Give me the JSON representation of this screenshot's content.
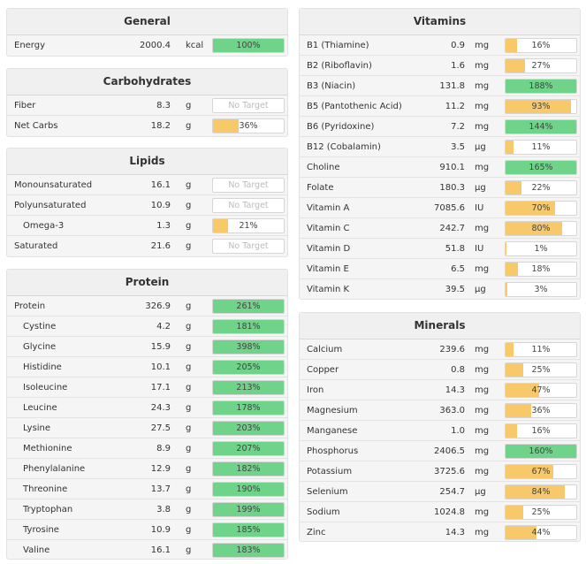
{
  "general": {
    "title": "General",
    "rows": [
      {
        "name": "Energy",
        "amount": "2000.4",
        "unit": "kcal",
        "pct": "100%",
        "fill": 1.0,
        "color": "green"
      }
    ]
  },
  "carbohydrates": {
    "title": "Carbohydrates",
    "rows": [
      {
        "name": "Fiber",
        "amount": "8.3",
        "unit": "g",
        "pct": "No Target",
        "fill": 0,
        "color": "none"
      },
      {
        "name": "Net Carbs",
        "amount": "18.2",
        "unit": "g",
        "pct": "36%",
        "fill": 0.36,
        "color": "yellow"
      }
    ]
  },
  "lipids": {
    "title": "Lipids",
    "rows": [
      {
        "name": "Monounsaturated",
        "amount": "16.1",
        "unit": "g",
        "pct": "No Target",
        "fill": 0,
        "color": "none"
      },
      {
        "name": "Polyunsaturated",
        "amount": "10.9",
        "unit": "g",
        "pct": "No Target",
        "fill": 0,
        "color": "none"
      },
      {
        "name": "Omega-3",
        "amount": "1.3",
        "unit": "g",
        "pct": "21%",
        "fill": 0.21,
        "color": "yellow",
        "indent": true
      },
      {
        "name": "Saturated",
        "amount": "21.6",
        "unit": "g",
        "pct": "No Target",
        "fill": 0,
        "color": "none"
      }
    ]
  },
  "protein": {
    "title": "Protein",
    "rows": [
      {
        "name": "Protein",
        "amount": "326.9",
        "unit": "g",
        "pct": "261%",
        "fill": 1.0,
        "color": "green"
      },
      {
        "name": "Cystine",
        "amount": "4.2",
        "unit": "g",
        "pct": "181%",
        "fill": 1.0,
        "color": "green",
        "indent": true
      },
      {
        "name": "Glycine",
        "amount": "15.9",
        "unit": "g",
        "pct": "398%",
        "fill": 1.0,
        "color": "green",
        "indent": true
      },
      {
        "name": "Histidine",
        "amount": "10.1",
        "unit": "g",
        "pct": "205%",
        "fill": 1.0,
        "color": "green",
        "indent": true
      },
      {
        "name": "Isoleucine",
        "amount": "17.1",
        "unit": "g",
        "pct": "213%",
        "fill": 1.0,
        "color": "green",
        "indent": true
      },
      {
        "name": "Leucine",
        "amount": "24.3",
        "unit": "g",
        "pct": "178%",
        "fill": 1.0,
        "color": "green",
        "indent": true
      },
      {
        "name": "Lysine",
        "amount": "27.5",
        "unit": "g",
        "pct": "203%",
        "fill": 1.0,
        "color": "green",
        "indent": true
      },
      {
        "name": "Methionine",
        "amount": "8.9",
        "unit": "g",
        "pct": "207%",
        "fill": 1.0,
        "color": "green",
        "indent": true
      },
      {
        "name": "Phenylalanine",
        "amount": "12.9",
        "unit": "g",
        "pct": "182%",
        "fill": 1.0,
        "color": "green",
        "indent": true
      },
      {
        "name": "Threonine",
        "amount": "13.7",
        "unit": "g",
        "pct": "190%",
        "fill": 1.0,
        "color": "green",
        "indent": true
      },
      {
        "name": "Tryptophan",
        "amount": "3.8",
        "unit": "g",
        "pct": "199%",
        "fill": 1.0,
        "color": "green",
        "indent": true
      },
      {
        "name": "Tyrosine",
        "amount": "10.9",
        "unit": "g",
        "pct": "185%",
        "fill": 1.0,
        "color": "green",
        "indent": true
      },
      {
        "name": "Valine",
        "amount": "16.1",
        "unit": "g",
        "pct": "183%",
        "fill": 1.0,
        "color": "green",
        "indent": true
      }
    ]
  },
  "vitamins": {
    "title": "Vitamins",
    "rows": [
      {
        "name": "B1 (Thiamine)",
        "amount": "0.9",
        "unit": "mg",
        "pct": "16%",
        "fill": 0.16,
        "color": "yellow"
      },
      {
        "name": "B2 (Riboflavin)",
        "amount": "1.6",
        "unit": "mg",
        "pct": "27%",
        "fill": 0.27,
        "color": "yellow"
      },
      {
        "name": "B3 (Niacin)",
        "amount": "131.8",
        "unit": "mg",
        "pct": "188%",
        "fill": 1.0,
        "color": "green"
      },
      {
        "name": "B5 (Pantothenic Acid)",
        "amount": "11.2",
        "unit": "mg",
        "pct": "93%",
        "fill": 0.93,
        "color": "yellow"
      },
      {
        "name": "B6 (Pyridoxine)",
        "amount": "7.2",
        "unit": "mg",
        "pct": "144%",
        "fill": 1.0,
        "color": "green"
      },
      {
        "name": "B12 (Cobalamin)",
        "amount": "3.5",
        "unit": "µg",
        "pct": "11%",
        "fill": 0.11,
        "color": "yellow"
      },
      {
        "name": "Choline",
        "amount": "910.1",
        "unit": "mg",
        "pct": "165%",
        "fill": 1.0,
        "color": "green"
      },
      {
        "name": "Folate",
        "amount": "180.3",
        "unit": "µg",
        "pct": "22%",
        "fill": 0.22,
        "color": "yellow"
      },
      {
        "name": "Vitamin A",
        "amount": "7085.6",
        "unit": "IU",
        "pct": "70%",
        "fill": 0.7,
        "color": "yellow"
      },
      {
        "name": "Vitamin C",
        "amount": "242.7",
        "unit": "mg",
        "pct": "80%",
        "fill": 0.8,
        "color": "yellow"
      },
      {
        "name": "Vitamin D",
        "amount": "51.8",
        "unit": "IU",
        "pct": "1%",
        "fill": 0.01,
        "color": "yellow"
      },
      {
        "name": "Vitamin E",
        "amount": "6.5",
        "unit": "mg",
        "pct": "18%",
        "fill": 0.18,
        "color": "yellow"
      },
      {
        "name": "Vitamin K",
        "amount": "39.5",
        "unit": "µg",
        "pct": "3%",
        "fill": 0.03,
        "color": "yellow"
      }
    ]
  },
  "minerals": {
    "title": "Minerals",
    "rows": [
      {
        "name": "Calcium",
        "amount": "239.6",
        "unit": "mg",
        "pct": "11%",
        "fill": 0.11,
        "color": "yellow"
      },
      {
        "name": "Copper",
        "amount": "0.8",
        "unit": "mg",
        "pct": "25%",
        "fill": 0.25,
        "color": "yellow"
      },
      {
        "name": "Iron",
        "amount": "14.3",
        "unit": "mg",
        "pct": "47%",
        "fill": 0.47,
        "color": "yellow"
      },
      {
        "name": "Magnesium",
        "amount": "363.0",
        "unit": "mg",
        "pct": "36%",
        "fill": 0.36,
        "color": "yellow"
      },
      {
        "name": "Manganese",
        "amount": "1.0",
        "unit": "mg",
        "pct": "16%",
        "fill": 0.16,
        "color": "yellow"
      },
      {
        "name": "Phosphorus",
        "amount": "2406.5",
        "unit": "mg",
        "pct": "160%",
        "fill": 1.0,
        "color": "green"
      },
      {
        "name": "Potassium",
        "amount": "3725.6",
        "unit": "mg",
        "pct": "67%",
        "fill": 0.67,
        "color": "yellow"
      },
      {
        "name": "Selenium",
        "amount": "254.7",
        "unit": "µg",
        "pct": "84%",
        "fill": 0.84,
        "color": "yellow"
      },
      {
        "name": "Sodium",
        "amount": "1024.8",
        "unit": "mg",
        "pct": "25%",
        "fill": 0.25,
        "color": "yellow"
      },
      {
        "name": "Zinc",
        "amount": "14.3",
        "unit": "mg",
        "pct": "44%",
        "fill": 0.44,
        "color": "yellow"
      }
    ]
  },
  "colors": {
    "green": "#6fd38a",
    "yellow": "#f8c96b"
  }
}
